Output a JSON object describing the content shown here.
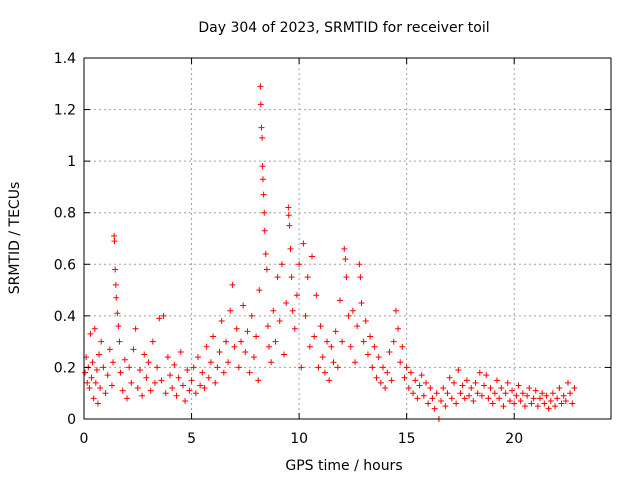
{
  "chart_data": {
    "type": "scatter",
    "title": "Day 304 of 2023, SRMTID for receiver toil",
    "xlabel": "GPS time / hours",
    "ylabel": "SRMTID / TECUs",
    "xlim": [
      0,
      24.5
    ],
    "ylim": [
      0,
      1.4
    ],
    "xticks": [
      0,
      5,
      10,
      15,
      20
    ],
    "xtick_labels": [
      "0",
      "5",
      "10",
      "15",
      "20"
    ],
    "yticks": [
      0,
      0.2,
      0.4,
      0.6,
      0.8,
      1.0,
      1.2,
      1.4
    ],
    "ytick_labels": [
      "0",
      "0.2",
      "0.4",
      "0.6",
      "0.8",
      "1",
      "1.2",
      "1.4"
    ],
    "grid": true,
    "marker": "+",
    "color": "#ff0000",
    "series": [
      {
        "name": "SRMTID",
        "points": [
          [
            0.05,
            0.18
          ],
          [
            0.1,
            0.24
          ],
          [
            0.15,
            0.14
          ],
          [
            0.2,
            0.2
          ],
          [
            0.25,
            0.12
          ],
          [
            0.3,
            0.33
          ],
          [
            0.35,
            0.16
          ],
          [
            0.4,
            0.22
          ],
          [
            0.45,
            0.08
          ],
          [
            0.5,
            0.35
          ],
          [
            0.55,
            0.14
          ],
          [
            0.6,
            0.19
          ],
          [
            0.65,
            0.06
          ],
          [
            0.7,
            0.25
          ],
          [
            0.75,
            0.12
          ],
          [
            0.8,
            0.3
          ],
          [
            0.9,
            0.2
          ],
          [
            1.0,
            0.1
          ],
          [
            1.1,
            0.17
          ],
          [
            1.2,
            0.27
          ],
          [
            1.3,
            0.13
          ],
          [
            1.35,
            0.22
          ],
          [
            1.4,
            0.71
          ],
          [
            1.42,
            0.69
          ],
          [
            1.45,
            0.58
          ],
          [
            1.48,
            0.52
          ],
          [
            1.5,
            0.47
          ],
          [
            1.55,
            0.41
          ],
          [
            1.6,
            0.36
          ],
          [
            1.65,
            0.3
          ],
          [
            1.7,
            0.18
          ],
          [
            1.8,
            0.11
          ],
          [
            1.9,
            0.23
          ],
          [
            2.0,
            0.08
          ],
          [
            2.1,
            0.2
          ],
          [
            2.2,
            0.14
          ],
          [
            2.3,
            0.27
          ],
          [
            2.4,
            0.35
          ],
          [
            2.5,
            0.12
          ],
          [
            2.6,
            0.19
          ],
          [
            2.7,
            0.09
          ],
          [
            2.8,
            0.25
          ],
          [
            2.9,
            0.16
          ],
          [
            3.0,
            0.22
          ],
          [
            3.1,
            0.11
          ],
          [
            3.2,
            0.3
          ],
          [
            3.3,
            0.14
          ],
          [
            3.4,
            0.2
          ],
          [
            3.5,
            0.39
          ],
          [
            3.6,
            0.15
          ],
          [
            3.7,
            0.4
          ],
          [
            3.8,
            0.1
          ],
          [
            3.9,
            0.24
          ],
          [
            4.0,
            0.17
          ],
          [
            4.1,
            0.12
          ],
          [
            4.2,
            0.21
          ],
          [
            4.3,
            0.09
          ],
          [
            4.4,
            0.16
          ],
          [
            4.5,
            0.26
          ],
          [
            4.6,
            0.13
          ],
          [
            4.7,
            0.07
          ],
          [
            4.8,
            0.19
          ],
          [
            4.9,
            0.11
          ],
          [
            5.0,
            0.15
          ],
          [
            5.1,
            0.2
          ],
          [
            5.2,
            0.1
          ],
          [
            5.3,
            0.24
          ],
          [
            5.4,
            0.13
          ],
          [
            5.5,
            0.18
          ],
          [
            5.6,
            0.12
          ],
          [
            5.7,
            0.28
          ],
          [
            5.8,
            0.16
          ],
          [
            5.9,
            0.22
          ],
          [
            6.0,
            0.32
          ],
          [
            6.1,
            0.14
          ],
          [
            6.2,
            0.2
          ],
          [
            6.3,
            0.26
          ],
          [
            6.4,
            0.38
          ],
          [
            6.5,
            0.18
          ],
          [
            6.6,
            0.3
          ],
          [
            6.7,
            0.22
          ],
          [
            6.8,
            0.42
          ],
          [
            6.9,
            0.52
          ],
          [
            7.0,
            0.28
          ],
          [
            7.1,
            0.35
          ],
          [
            7.2,
            0.2
          ],
          [
            7.3,
            0.3
          ],
          [
            7.4,
            0.44
          ],
          [
            7.5,
            0.26
          ],
          [
            7.6,
            0.34
          ],
          [
            7.7,
            0.18
          ],
          [
            7.8,
            0.4
          ],
          [
            7.9,
            0.24
          ],
          [
            8.0,
            0.32
          ],
          [
            8.1,
            0.15
          ],
          [
            8.15,
            0.5
          ],
          [
            8.2,
            1.29
          ],
          [
            8.22,
            1.22
          ],
          [
            8.25,
            1.13
          ],
          [
            8.28,
            1.09
          ],
          [
            8.3,
            0.98
          ],
          [
            8.32,
            0.93
          ],
          [
            8.35,
            0.87
          ],
          [
            8.38,
            0.8
          ],
          [
            8.4,
            0.73
          ],
          [
            8.45,
            0.64
          ],
          [
            8.5,
            0.58
          ],
          [
            8.55,
            0.36
          ],
          [
            8.6,
            0.28
          ],
          [
            8.7,
            0.22
          ],
          [
            8.8,
            0.42
          ],
          [
            8.9,
            0.3
          ],
          [
            9.0,
            0.55
          ],
          [
            9.1,
            0.38
          ],
          [
            9.2,
            0.6
          ],
          [
            9.3,
            0.25
          ],
          [
            9.4,
            0.45
          ],
          [
            9.5,
            0.82
          ],
          [
            9.52,
            0.79
          ],
          [
            9.55,
            0.75
          ],
          [
            9.6,
            0.66
          ],
          [
            9.65,
            0.55
          ],
          [
            9.7,
            0.42
          ],
          [
            9.8,
            0.35
          ],
          [
            9.9,
            0.48
          ],
          [
            10.0,
            0.6
          ],
          [
            10.1,
            0.2
          ],
          [
            10.2,
            0.68
          ],
          [
            10.3,
            0.4
          ],
          [
            10.4,
            0.55
          ],
          [
            10.5,
            0.28
          ],
          [
            10.6,
            0.63
          ],
          [
            10.7,
            0.32
          ],
          [
            10.8,
            0.48
          ],
          [
            10.9,
            0.2
          ],
          [
            11.0,
            0.36
          ],
          [
            11.1,
            0.24
          ],
          [
            11.2,
            0.18
          ],
          [
            11.3,
            0.3
          ],
          [
            11.4,
            0.15
          ],
          [
            11.5,
            0.28
          ],
          [
            11.6,
            0.22
          ],
          [
            11.7,
            0.34
          ],
          [
            11.8,
            0.2
          ],
          [
            11.9,
            0.46
          ],
          [
            12.0,
            0.3
          ],
          [
            12.1,
            0.66
          ],
          [
            12.15,
            0.62
          ],
          [
            12.2,
            0.55
          ],
          [
            12.3,
            0.4
          ],
          [
            12.4,
            0.28
          ],
          [
            12.5,
            0.42
          ],
          [
            12.6,
            0.22
          ],
          [
            12.7,
            0.36
          ],
          [
            12.8,
            0.6
          ],
          [
            12.85,
            0.55
          ],
          [
            12.9,
            0.45
          ],
          [
            13.0,
            0.3
          ],
          [
            13.1,
            0.38
          ],
          [
            13.2,
            0.25
          ],
          [
            13.3,
            0.32
          ],
          [
            13.4,
            0.2
          ],
          [
            13.5,
            0.28
          ],
          [
            13.6,
            0.16
          ],
          [
            13.7,
            0.24
          ],
          [
            13.8,
            0.14
          ],
          [
            13.9,
            0.2
          ],
          [
            14.0,
            0.12
          ],
          [
            14.1,
            0.18
          ],
          [
            14.2,
            0.26
          ],
          [
            14.3,
            0.15
          ],
          [
            14.4,
            0.3
          ],
          [
            14.5,
            0.42
          ],
          [
            14.6,
            0.35
          ],
          [
            14.7,
            0.22
          ],
          [
            14.8,
            0.28
          ],
          [
            14.9,
            0.16
          ],
          [
            15.0,
            0.2
          ],
          [
            15.1,
            0.12
          ],
          [
            15.2,
            0.18
          ],
          [
            15.3,
            0.1
          ],
          [
            15.4,
            0.15
          ],
          [
            15.5,
            0.08
          ],
          [
            15.6,
            0.13
          ],
          [
            15.7,
            0.17
          ],
          [
            15.8,
            0.09
          ],
          [
            15.9,
            0.14
          ],
          [
            16.0,
            0.06
          ],
          [
            16.1,
            0.12
          ],
          [
            16.2,
            0.08
          ],
          [
            16.3,
            0.04
          ],
          [
            16.4,
            0.1
          ],
          [
            16.5,
            0.0
          ],
          [
            16.6,
            0.07
          ],
          [
            16.7,
            0.12
          ],
          [
            16.8,
            0.05
          ],
          [
            16.9,
            0.1
          ],
          [
            17.0,
            0.16
          ],
          [
            17.1,
            0.08
          ],
          [
            17.2,
            0.14
          ],
          [
            17.3,
            0.06
          ],
          [
            17.4,
            0.19
          ],
          [
            17.5,
            0.1
          ],
          [
            17.6,
            0.13
          ],
          [
            17.7,
            0.08
          ],
          [
            17.8,
            0.15
          ],
          [
            17.9,
            0.09
          ],
          [
            18.0,
            0.12
          ],
          [
            18.1,
            0.07
          ],
          [
            18.2,
            0.14
          ],
          [
            18.3,
            0.1
          ],
          [
            18.4,
            0.18
          ],
          [
            18.5,
            0.09
          ],
          [
            18.6,
            0.13
          ],
          [
            18.7,
            0.17
          ],
          [
            18.8,
            0.08
          ],
          [
            18.9,
            0.12
          ],
          [
            19.0,
            0.06
          ],
          [
            19.1,
            0.1
          ],
          [
            19.2,
            0.15
          ],
          [
            19.3,
            0.08
          ],
          [
            19.4,
            0.12
          ],
          [
            19.5,
            0.05
          ],
          [
            19.6,
            0.1
          ],
          [
            19.7,
            0.14
          ],
          [
            19.8,
            0.07
          ],
          [
            19.9,
            0.11
          ],
          [
            20.0,
            0.06
          ],
          [
            20.1,
            0.09
          ],
          [
            20.2,
            0.13
          ],
          [
            20.3,
            0.07
          ],
          [
            20.4,
            0.1
          ],
          [
            20.5,
            0.05
          ],
          [
            20.6,
            0.09
          ],
          [
            20.7,
            0.12
          ],
          [
            20.8,
            0.06
          ],
          [
            20.9,
            0.08
          ],
          [
            21.0,
            0.11
          ],
          [
            21.1,
            0.05
          ],
          [
            21.2,
            0.08
          ],
          [
            21.3,
            0.1
          ],
          [
            21.4,
            0.06
          ],
          [
            21.5,
            0.09
          ],
          [
            21.6,
            0.04
          ],
          [
            21.7,
            0.07
          ],
          [
            21.8,
            0.1
          ],
          [
            21.9,
            0.05
          ],
          [
            22.0,
            0.08
          ],
          [
            22.1,
            0.12
          ],
          [
            22.2,
            0.06
          ],
          [
            22.3,
            0.09
          ],
          [
            22.4,
            0.07
          ],
          [
            22.5,
            0.14
          ],
          [
            22.6,
            0.1
          ],
          [
            22.7,
            0.06
          ],
          [
            22.8,
            0.12
          ]
        ]
      }
    ]
  }
}
